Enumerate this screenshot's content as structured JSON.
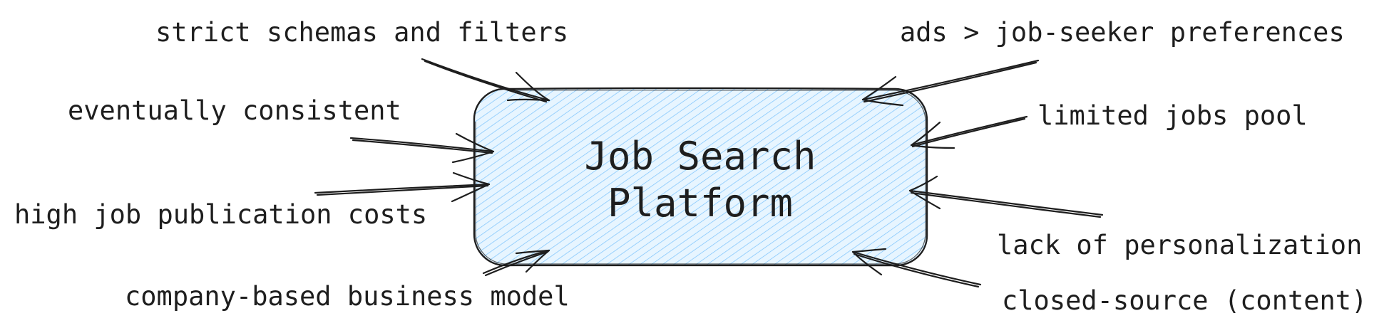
{
  "center": {
    "line1": "Job Search",
    "line2": "Platform",
    "fill_color": "#a5d8ff",
    "stroke_color": "#1e1e1e"
  },
  "labels": {
    "strict_schemas": "strict schemas and filters",
    "eventually_consistent": "eventually consistent",
    "high_publication_costs": "high job publication costs",
    "company_based_model": "company-based business model",
    "ads_over_preferences": "ads > job-seeker preferences",
    "limited_jobs_pool": "limited jobs pool",
    "lack_of_personalization": "lack of personalization",
    "closed_source": "closed-source (content)"
  }
}
